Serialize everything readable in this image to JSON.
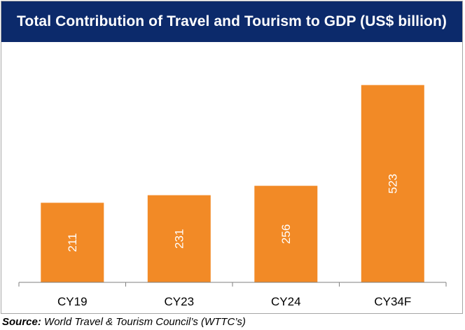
{
  "chart_data": {
    "type": "bar",
    "title": "Total Contribution of Travel and Tourism to GDP (US$ billion)",
    "categories": [
      "CY19",
      "CY23",
      "CY24",
      "CY34F"
    ],
    "values": [
      211,
      231,
      256,
      523
    ],
    "data_labels": [
      "211",
      "231",
      "256",
      "523"
    ],
    "xlabel": "",
    "ylabel": "",
    "ylim": [
      0,
      600
    ],
    "grid": false,
    "legend": "none",
    "bar_color": "#f28a26",
    "label_color": "#ffffff"
  },
  "colors": {
    "title_background": "#0c2a6b",
    "title_text": "#ffffff",
    "frame_border": "#a6a6a6"
  },
  "source": {
    "label": "Source:",
    "text": "World Travel & Tourism Council’s (WTTC’s)"
  }
}
